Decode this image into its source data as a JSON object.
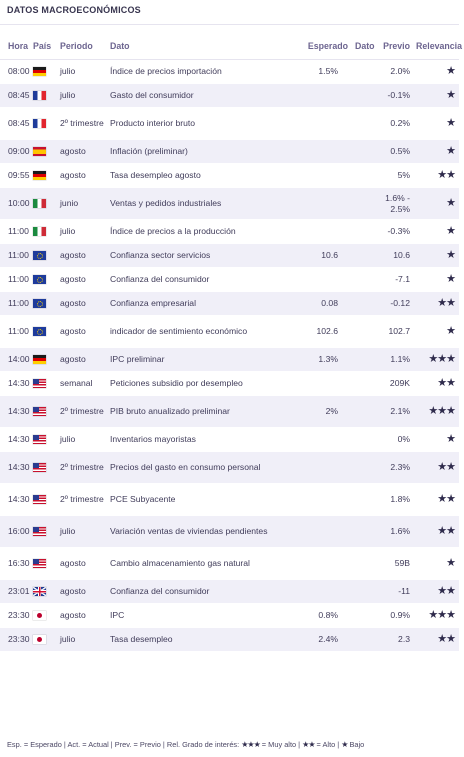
{
  "title": "DATOS MACROECONÓMICOS",
  "columns": {
    "hora": "Hora",
    "pais": "País",
    "periodo": "Periodo",
    "dato_label": "Dato",
    "esperado": "Esperado",
    "dato": "Dato",
    "previo": "Previo",
    "relevancia": "Relevancia"
  },
  "rows": [
    {
      "hora": "08:00",
      "flag": "de",
      "periodo": "julio",
      "dato": "Índice de precios importación",
      "esperado": "1.5%",
      "actual": "",
      "previo": "2.0%",
      "relevancia": 1
    },
    {
      "hora": "08:45",
      "flag": "fr",
      "periodo": "julio",
      "dato": "Gasto del consumidor",
      "esperado": "",
      "actual": "",
      "previo": "-0.1%",
      "relevancia": 1
    },
    {
      "hora": "08:45",
      "flag": "fr",
      "periodo": "2º trimestre",
      "dato": "Producto interior bruto",
      "esperado": "",
      "actual": "",
      "previo": "0.2%",
      "relevancia": 1
    },
    {
      "hora": "09:00",
      "flag": "es",
      "periodo": "agosto",
      "dato": "Inflación (preliminar)",
      "esperado": "",
      "actual": "",
      "previo": "0.5%",
      "relevancia": 1
    },
    {
      "hora": "09:55",
      "flag": "de",
      "periodo": "agosto",
      "dato": "Tasa desempleo agosto",
      "esperado": "",
      "actual": "",
      "previo": "5%",
      "relevancia": 2
    },
    {
      "hora": "10:00",
      "flag": "it",
      "periodo": "junio",
      "dato": "Ventas y pedidos industriales",
      "esperado": "",
      "actual": "",
      "previo": "1.6% - 2.5%",
      "relevancia": 1
    },
    {
      "hora": "11:00",
      "flag": "it",
      "periodo": "julio",
      "dato": "Índice de precios a la producción",
      "esperado": "",
      "actual": "",
      "previo": "-0.3%",
      "relevancia": 1
    },
    {
      "hora": "11:00",
      "flag": "eu",
      "periodo": "agosto",
      "dato": "Confianza sector servicios",
      "esperado": "10.6",
      "actual": "",
      "previo": "10.6",
      "relevancia": 1
    },
    {
      "hora": "11:00",
      "flag": "eu",
      "periodo": "agosto",
      "dato": "Confianza del consumidor",
      "esperado": "",
      "actual": "",
      "previo": "-7.1",
      "relevancia": 1
    },
    {
      "hora": "11:00",
      "flag": "eu",
      "periodo": "agosto",
      "dato": "Confianza empresarial",
      "esperado": "0.08",
      "actual": "",
      "previo": "-0.12",
      "relevancia": 2
    },
    {
      "hora": "11:00",
      "flag": "eu",
      "periodo": "agosto",
      "dato": "indicador de sentimiento económico",
      "esperado": "102.6",
      "actual": "",
      "previo": "102.7",
      "relevancia": 1
    },
    {
      "hora": "14:00",
      "flag": "de",
      "periodo": "agosto",
      "dato": "IPC preliminar",
      "esperado": "1.3%",
      "actual": "",
      "previo": "1.1%",
      "relevancia": 3
    },
    {
      "hora": "14:30",
      "flag": "us",
      "periodo": "semanal",
      "dato": "Peticiones subsidio por desempleo",
      "esperado": "",
      "actual": "",
      "previo": "209K",
      "relevancia": 2
    },
    {
      "hora": "14:30",
      "flag": "us",
      "periodo": "2º trimestre",
      "dato": "PIB bruto anualizado preliminar",
      "esperado": "2%",
      "actual": "",
      "previo": "2.1%",
      "relevancia": 3
    },
    {
      "hora": "14:30",
      "flag": "us",
      "periodo": "julio",
      "dato": "Inventarios mayoristas",
      "esperado": "",
      "actual": "",
      "previo": "0%",
      "relevancia": 1
    },
    {
      "hora": "14:30",
      "flag": "us",
      "periodo": "2º trimestre",
      "dato": "Precios del gasto en consumo personal",
      "esperado": "",
      "actual": "",
      "previo": "2.3%",
      "relevancia": 2
    },
    {
      "hora": "14:30",
      "flag": "us",
      "periodo": "2º trimestre",
      "dato": "PCE Subyacente",
      "esperado": "",
      "actual": "",
      "previo": "1.8%",
      "relevancia": 2
    },
    {
      "hora": "16:00",
      "flag": "us",
      "periodo": "julio",
      "dato": "Variación ventas de viviendas pendientes",
      "esperado": "",
      "actual": "",
      "previo": "1.6%",
      "relevancia": 2
    },
    {
      "hora": "16:30",
      "flag": "us",
      "periodo": "agosto",
      "dato": "Cambio almacenamiento gas natural",
      "esperado": "",
      "actual": "",
      "previo": "59B",
      "relevancia": 1
    },
    {
      "hora": "23:01",
      "flag": "gb",
      "periodo": "agosto",
      "dato": "Confianza del consumidor",
      "esperado": "",
      "actual": "",
      "previo": "-11",
      "relevancia": 2
    },
    {
      "hora": "23:30",
      "flag": "jp",
      "periodo": "agosto",
      "dato": "IPC",
      "esperado": "0.8%",
      "actual": "",
      "previo": "0.9%",
      "relevancia": 3
    },
    {
      "hora": "23:30",
      "flag": "jp",
      "periodo": "julio",
      "dato": "Tasa desempleo",
      "esperado": "2.4%",
      "actual": "",
      "previo": "2.3",
      "relevancia": 2
    }
  ],
  "row_heights": "layout-in-css",
  "legend": {
    "text_prefix": "Esp. = Esperado | Act. = Actual | Prev. = Previo | Rel. Grado de interés: ",
    "muy_alto": " = Muy alto | ",
    "alto": " = Alto | ",
    "bajo": " Bajo"
  }
}
